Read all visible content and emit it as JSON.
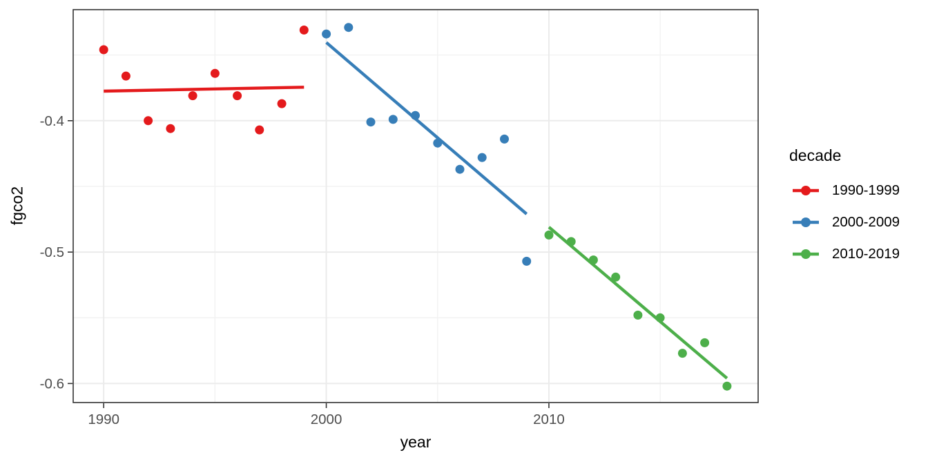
{
  "chart_data": {
    "type": "scatter",
    "title": "",
    "xlabel": "year",
    "ylabel": "fgco2",
    "xlim": [
      1988.63,
      2019.4
    ],
    "ylim": [
      -0.6145,
      -0.3155
    ],
    "grid": true,
    "legend": {
      "title": "decade",
      "position": "right"
    },
    "x_ticks": {
      "values": [
        1990,
        2000,
        2010
      ],
      "labels": [
        "1990",
        "2000",
        "2010"
      ],
      "minor": [
        1995,
        2005,
        2015
      ]
    },
    "y_ticks": {
      "values": [
        -0.4,
        -0.5,
        -0.6
      ],
      "labels": [
        "-0.4",
        "-0.5",
        "-0.6"
      ],
      "minor": [
        -0.35,
        -0.45,
        -0.55
      ]
    },
    "series": [
      {
        "name": "1990-1999",
        "color": "#E41A1C",
        "x": [
          1990,
          1991,
          1992,
          1993,
          1994,
          1995,
          1996,
          1997,
          1998,
          1999
        ],
        "y": [
          -0.346,
          -0.366,
          -0.4,
          -0.406,
          -0.381,
          -0.364,
          -0.381,
          -0.407,
          -0.387,
          -0.331
        ],
        "trend": {
          "x": [
            1990.0,
            1999.0
          ],
          "y": [
            -0.3775,
            -0.3745
          ]
        }
      },
      {
        "name": "2000-2009",
        "color": "#377EB8",
        "x": [
          2000,
          2001,
          2002,
          2003,
          2004,
          2005,
          2006,
          2007,
          2008,
          2009
        ],
        "y": [
          -0.334,
          -0.329,
          -0.401,
          -0.399,
          -0.396,
          -0.417,
          -0.437,
          -0.428,
          -0.414,
          -0.507
        ],
        "trend": {
          "x": [
            2000.0,
            2009.0
          ],
          "y": [
            -0.3405,
            -0.471
          ]
        }
      },
      {
        "name": "2010-2019",
        "color": "#4DAF4A",
        "x": [
          2010,
          2011,
          2012,
          2013,
          2014,
          2015,
          2016,
          2017,
          2018
        ],
        "y": [
          -0.487,
          -0.492,
          -0.506,
          -0.519,
          -0.548,
          -0.55,
          -0.577,
          -0.569,
          -0.602
        ],
        "trend": {
          "x": [
            2010.0,
            2018.0
          ],
          "y": [
            -0.481,
            -0.596
          ]
        }
      }
    ],
    "theme": {
      "panel_background": "#FFFFFF",
      "panel_border": "#333333",
      "grid_major": "#EBEBEB",
      "grid_minor": "#F2F2F2",
      "tick_color": "#333333",
      "tick_label_color": "#4D4D4D",
      "axis_title_color": "#000000"
    }
  }
}
